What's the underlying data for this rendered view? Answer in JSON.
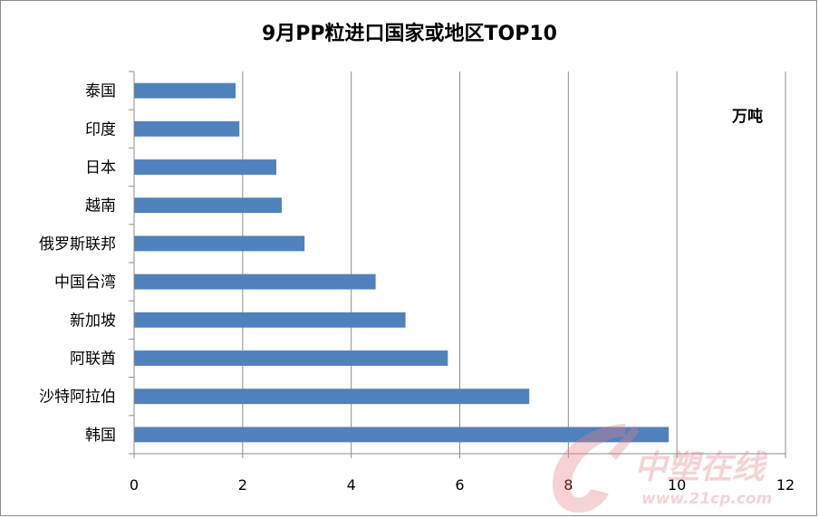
{
  "chart_data": {
    "type": "bar",
    "orientation": "horizontal",
    "title": "9月PP粒进口国家或地区TOP10",
    "unit_label": "万吨",
    "categories": [
      "泰国",
      "印度",
      "日本",
      "越南",
      "俄罗斯联邦",
      "中国台湾",
      "新加坡",
      "阿联酋",
      "沙特阿拉伯",
      "韩国"
    ],
    "values": [
      1.87,
      1.94,
      2.62,
      2.72,
      3.14,
      4.45,
      5.0,
      5.78,
      7.28,
      9.85
    ],
    "xlim": [
      0,
      12
    ],
    "xticks": [
      0,
      2,
      4,
      6,
      8,
      10,
      12
    ],
    "grid": true,
    "bar_color": "#4f81bd"
  },
  "watermark": {
    "name": "中塑在线",
    "url": "www.21cp.com"
  }
}
